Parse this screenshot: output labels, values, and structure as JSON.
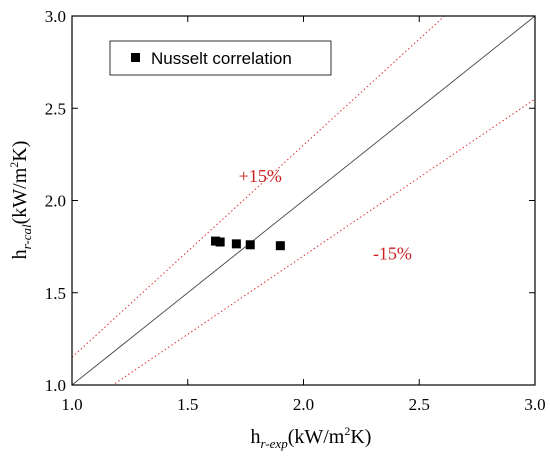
{
  "chart_data": {
    "type": "scatter",
    "title": "",
    "xlabel": {
      "main": "h",
      "sub": "r-exp",
      "unit_pre": "(kW/m",
      "unit_sup": "2",
      "unit_post": "K)"
    },
    "ylabel": {
      "main": "h",
      "sub": "r-cal",
      "unit_pre": "(kW/m",
      "unit_sup": "2",
      "unit_post": "K)"
    },
    "xlim": [
      1.0,
      3.0
    ],
    "ylim": [
      1.0,
      3.0
    ],
    "xticks": [
      "1.0",
      "1.5",
      "2.0",
      "2.5",
      "3.0"
    ],
    "yticks": [
      "1.0",
      "1.5",
      "2.0",
      "2.5",
      "3.0"
    ],
    "grid": false,
    "legend_position": "top-left",
    "series": [
      {
        "name": "Nusselt correlation",
        "marker": "square",
        "color": "#000000",
        "x": [
          1.62,
          1.64,
          1.71,
          1.77,
          1.9
        ],
        "y": [
          1.78,
          1.775,
          1.765,
          1.76,
          1.755
        ]
      }
    ],
    "reference_lines": [
      {
        "factor": 1.0,
        "color": "#444444",
        "style": "solid"
      },
      {
        "factor": 1.15,
        "color": "#e03030",
        "style": "dotted"
      },
      {
        "factor": 0.85,
        "color": "#e03030",
        "style": "dotted"
      }
    ],
    "annotations": [
      {
        "text": "+15%",
        "x": 1.72,
        "y": 2.1,
        "color": "#cc2222"
      },
      {
        "text": "-15%",
        "x": 2.3,
        "y": 1.68,
        "color": "#cc2222"
      }
    ]
  }
}
